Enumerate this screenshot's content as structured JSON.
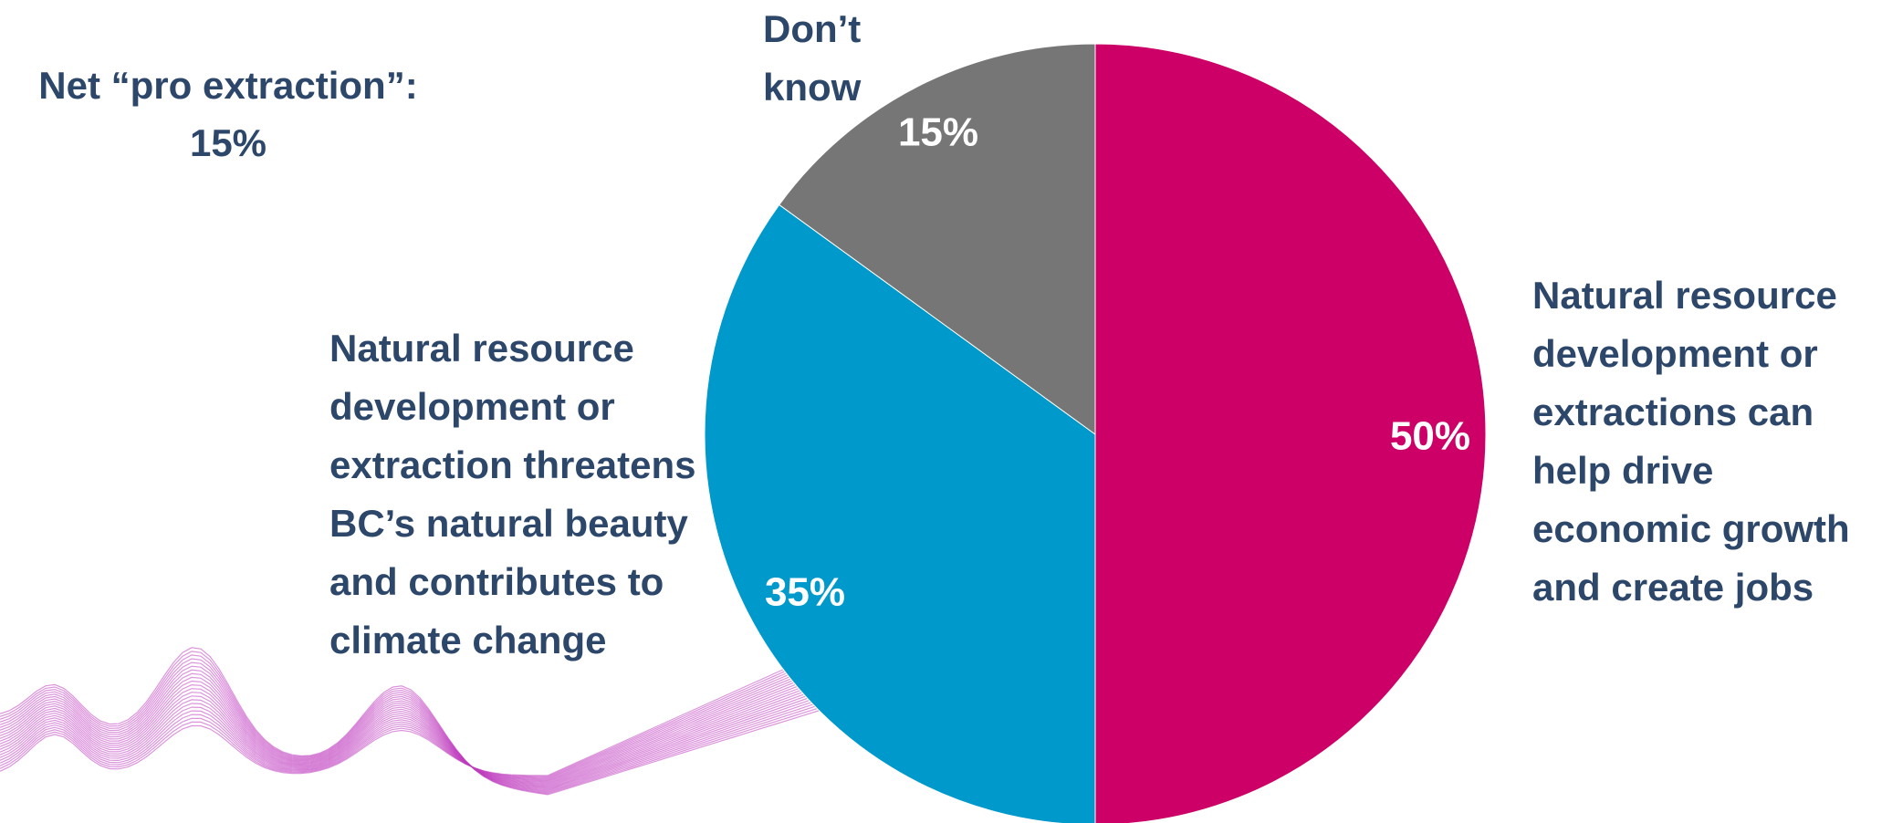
{
  "chart_data": {
    "type": "pie",
    "annotation": {
      "label": "Net “pro extraction”:",
      "value": 15,
      "value_label": "15%"
    },
    "categories": [
      "Natural resource development or extractions can help drive economic growth and create jobs",
      "Natural resource development or extraction threatens BC’s natural beauty and contributes to climate change",
      "Don’t know"
    ],
    "values": [
      50,
      35,
      15
    ],
    "value_labels": [
      "50%",
      "35%",
      "15%"
    ],
    "colors": [
      "#cc0066",
      "#0099cc",
      "#767676"
    ]
  }
}
